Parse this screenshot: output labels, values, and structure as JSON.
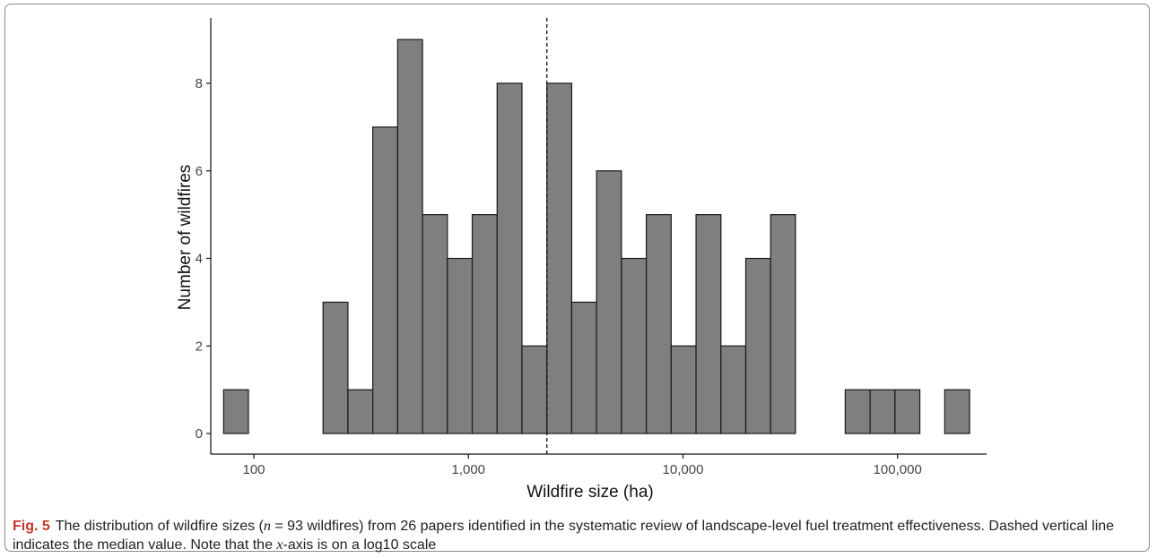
{
  "chart_data": {
    "type": "bar",
    "xlabel": "Wildfire size (ha)",
    "ylabel": "Number of wildfires",
    "x_scale": "log10",
    "xlim": [
      63,
      260000
    ],
    "ylim": [
      0,
      9.5
    ],
    "x_ticks": [
      100,
      1000,
      10000,
      100000
    ],
    "x_tick_labels": [
      "100",
      "1,000",
      "10,000",
      "100,000"
    ],
    "y_ticks": [
      0,
      2,
      4,
      6,
      8
    ],
    "y_tick_labels": [
      "0",
      "2",
      "4",
      "6",
      "8"
    ],
    "grid": false,
    "bar_fill": "#7f7f7f",
    "bar_stroke": "#1a1a1a",
    "bins": [
      {
        "x0": 72.3,
        "x1": 94.4,
        "count": 1
      },
      {
        "x0": 94.4,
        "x1": 123.3,
        "count": 0
      },
      {
        "x0": 123.3,
        "x1": 161.0,
        "count": 0
      },
      {
        "x0": 161.0,
        "x1": 210.2,
        "count": 0
      },
      {
        "x0": 210.2,
        "x1": 274.5,
        "count": 3
      },
      {
        "x0": 274.5,
        "x1": 358.4,
        "count": 1
      },
      {
        "x0": 358.4,
        "x1": 468.0,
        "count": 7
      },
      {
        "x0": 468.0,
        "x1": 611.2,
        "count": 9
      },
      {
        "x0": 611.2,
        "x1": 798.1,
        "count": 5
      },
      {
        "x0": 798.1,
        "x1": 1042,
        "count": 4
      },
      {
        "x0": 1042,
        "x1": 1361,
        "count": 5
      },
      {
        "x0": 1361,
        "x1": 1777,
        "count": 8
      },
      {
        "x0": 1777,
        "x1": 2321,
        "count": 2
      },
      {
        "x0": 2321,
        "x1": 3030,
        "count": 8
      },
      {
        "x0": 3030,
        "x1": 3957,
        "count": 3
      },
      {
        "x0": 3957,
        "x1": 5167,
        "count": 6
      },
      {
        "x0": 5167,
        "x1": 6747,
        "count": 4
      },
      {
        "x0": 6747,
        "x1": 8810,
        "count": 5
      },
      {
        "x0": 8810,
        "x1": 11505,
        "count": 2
      },
      {
        "x0": 11505,
        "x1": 15024,
        "count": 5
      },
      {
        "x0": 15024,
        "x1": 19618,
        "count": 2
      },
      {
        "x0": 19618,
        "x1": 25618,
        "count": 4
      },
      {
        "x0": 25618,
        "x1": 33453,
        "count": 5
      },
      {
        "x0": 33453,
        "x1": 43684,
        "count": 0
      },
      {
        "x0": 43684,
        "x1": 57044,
        "count": 0
      },
      {
        "x0": 57044,
        "x1": 74490,
        "count": 1
      },
      {
        "x0": 74490,
        "x1": 97271,
        "count": 1
      },
      {
        "x0": 97271,
        "x1": 127020,
        "count": 1
      },
      {
        "x0": 127020,
        "x1": 165866,
        "count": 0
      },
      {
        "x0": 165866,
        "x1": 216595,
        "count": 1
      }
    ],
    "median_line": {
      "x": 2321,
      "style": "dashed"
    }
  },
  "caption": {
    "label": "Fig. 5",
    "text_1": "The distribution of wildfire sizes (",
    "n_symbol": "n",
    "text_2": " = 93 wildfires) from 26 papers identified in the systematic review of landscape-level fuel treatment effectiveness. Dashed vertical line indicates the median value. Note that the ",
    "x_symbol": "x",
    "text_3": "-axis is on a log10 scale"
  }
}
